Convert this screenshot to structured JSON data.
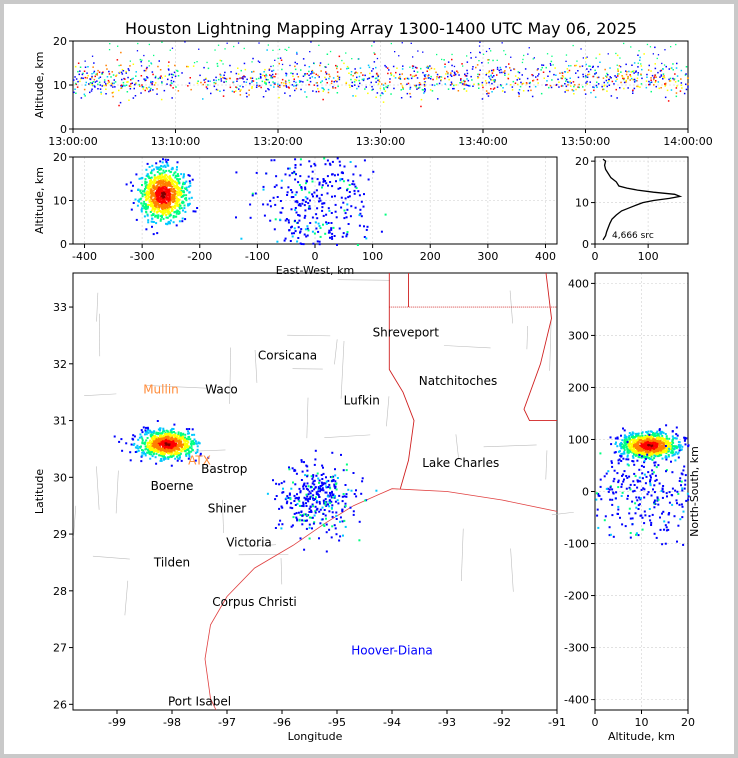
{
  "chart_data": [
    {
      "id": "time_altitude",
      "type": "scatter",
      "title": "Houston Lightning Mapping Array 1300-1400 UTC May 06, 2025",
      "ylabel": "Altitude, km",
      "xlim": [
        "13:00:00",
        "14:00:00"
      ],
      "ylim": [
        0,
        20
      ],
      "x_ticks": [
        "13:00:00",
        "13:10:00",
        "13:20:00",
        "13:30:00",
        "13:40:00",
        "13:50:00",
        "14:00:00"
      ],
      "y_ticks": [
        0,
        10,
        20
      ],
      "grid": true,
      "note_density_band_altitude_km": [
        8,
        15
      ]
    },
    {
      "id": "eastwest_altitude",
      "type": "scatter",
      "xlabel": "East-West, km",
      "ylabel": "Altitude, km",
      "xlim": [
        -420,
        420
      ],
      "ylim": [
        0,
        20
      ],
      "x_ticks": [
        -400,
        -300,
        -200,
        -100,
        0,
        100,
        200,
        300,
        400
      ],
      "y_ticks": [
        0,
        10,
        20
      ],
      "clusters": [
        {
          "x": -265,
          "y": 11.5,
          "spread_x": 20,
          "spread_y": 3,
          "dense": true
        },
        {
          "x": 0,
          "y": 10,
          "spread_x": 50,
          "spread_y": 8,
          "dense": false
        }
      ]
    },
    {
      "id": "altitude_histogram",
      "type": "line",
      "xlim": [
        0,
        175
      ],
      "ylim": [
        0,
        21
      ],
      "x_ticks": [
        0,
        100
      ],
      "y_ticks": [
        0,
        10,
        20
      ],
      "annotation": "4,666 src",
      "x": [
        15,
        20,
        22,
        25,
        28,
        32,
        40,
        50,
        60,
        70,
        80,
        90,
        110,
        140,
        160,
        150,
        110,
        80,
        60,
        45,
        40,
        30,
        25,
        20,
        18,
        20,
        15
      ],
      "y": [
        1,
        2,
        3,
        4,
        5,
        6,
        7,
        8,
        8.5,
        9,
        9.5,
        10,
        10.5,
        11,
        11.5,
        12,
        12.5,
        13,
        13.5,
        14,
        15,
        16,
        17,
        18,
        19,
        20,
        20.5
      ]
    },
    {
      "id": "plan_view_map",
      "type": "scatter",
      "xlabel": "Longitude",
      "ylabel": "Latitude",
      "xlim": [
        -99.8,
        -91
      ],
      "ylim": [
        25.9,
        33.6
      ],
      "x_ticks": [
        -99,
        -98,
        -97,
        -96,
        -95,
        -94,
        -93,
        -92,
        -91
      ],
      "y_ticks": [
        26,
        27,
        28,
        29,
        30,
        31,
        32,
        33
      ],
      "labels": [
        {
          "text": "Shreveport",
          "lon": -93.75,
          "lat": 32.55,
          "color": "#000000"
        },
        {
          "text": "Corsicana",
          "lon": -95.9,
          "lat": 32.15,
          "color": "#000000"
        },
        {
          "text": "Natchitoches",
          "lon": -92.8,
          "lat": 31.7,
          "color": "#000000"
        },
        {
          "text": "Mullin",
          "lon": -98.2,
          "lat": 31.55,
          "color": "#ff8c3a"
        },
        {
          "text": "Waco",
          "lon": -97.1,
          "lat": 31.55,
          "color": "#000000"
        },
        {
          "text": "Lufkin",
          "lon": -94.55,
          "lat": 31.35,
          "color": "#000000"
        },
        {
          "text": "ATX",
          "lon": -97.5,
          "lat": 30.3,
          "color": "#ff8c3a"
        },
        {
          "text": "Bastrop",
          "lon": -97.05,
          "lat": 30.15,
          "color": "#000000"
        },
        {
          "text": "Lake Charles",
          "lon": -92.75,
          "lat": 30.25,
          "color": "#000000"
        },
        {
          "text": "Boerne",
          "lon": -98.0,
          "lat": 29.85,
          "color": "#000000"
        },
        {
          "text": "Shiner",
          "lon": -97.0,
          "lat": 29.45,
          "color": "#000000"
        },
        {
          "text": "Victoria",
          "lon": -96.6,
          "lat": 28.85,
          "color": "#000000"
        },
        {
          "text": "Tilden",
          "lon": -98.0,
          "lat": 28.5,
          "color": "#000000"
        },
        {
          "text": "Corpus Christi",
          "lon": -96.5,
          "lat": 27.8,
          "color": "#000000"
        },
        {
          "text": "Hoover-Diana",
          "lon": -94.0,
          "lat": 26.95,
          "color": "#0000ff"
        },
        {
          "text": "Port Isabel",
          "lon": -97.5,
          "lat": 26.05,
          "color": "#000000"
        }
      ],
      "clusters": [
        {
          "lon": -98.1,
          "lat": 30.6,
          "spread_lon": 0.25,
          "spread_lat": 0.12,
          "dense": true
        },
        {
          "lon": -95.4,
          "lat": 29.65,
          "spread_lon": 0.35,
          "spread_lat": 0.3,
          "dense": false
        }
      ]
    },
    {
      "id": "altitude_northsouth",
      "type": "scatter",
      "xlabel": "Altitude, km",
      "ylabel": "North-South, km",
      "xlim": [
        0,
        20
      ],
      "ylim": [
        -420,
        420
      ],
      "x_ticks": [
        0,
        10,
        20
      ],
      "y_ticks": [
        -400,
        -300,
        -200,
        -100,
        0,
        100,
        200,
        300,
        400
      ],
      "clusters": [
        {
          "x": 11.5,
          "y": 90,
          "spread_x": 3,
          "spread_y": 12,
          "dense": true
        },
        {
          "x": 10,
          "y": -5,
          "spread_x": 8,
          "spread_y": 40,
          "dense": false
        }
      ]
    }
  ]
}
